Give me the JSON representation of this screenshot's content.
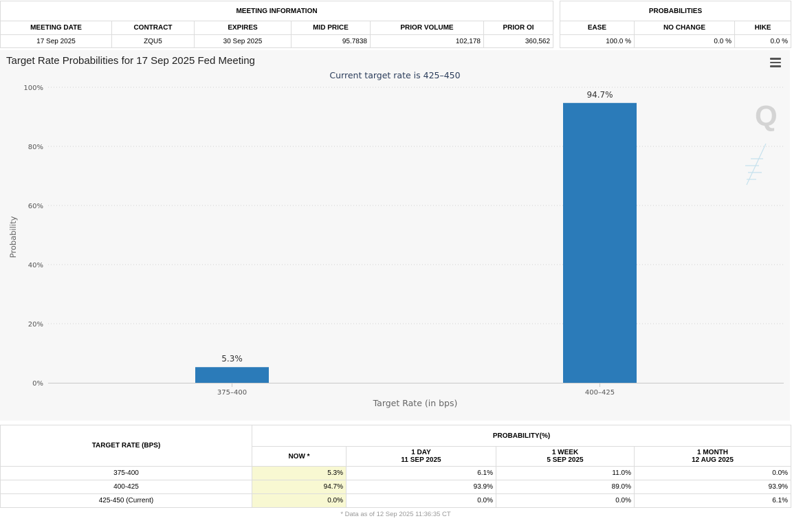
{
  "meeting_info": {
    "group_title": "MEETING INFORMATION",
    "headers": [
      "MEETING DATE",
      "CONTRACT",
      "EXPIRES",
      "MID PRICE",
      "PRIOR VOLUME",
      "PRIOR OI"
    ],
    "values": [
      "17 Sep 2025",
      "ZQU5",
      "30 Sep 2025",
      "95.7838",
      "102,178",
      "360,562"
    ]
  },
  "probabilities": {
    "group_title": "PROBABILITIES",
    "headers": [
      "EASE",
      "NO CHANGE",
      "HIKE"
    ],
    "values": [
      "100.0 %",
      "0.0 %",
      "0.0 %"
    ]
  },
  "chart": {
    "menu_icon": "hamburger-menu-icon",
    "watermark_icon": "quikstrike-q-logo",
    "bar_color": "#2b7bb9"
  },
  "chart_data": {
    "type": "bar",
    "title": "Target Rate Probabilities for 17 Sep 2025 Fed Meeting",
    "subtitle": "Current target rate is 425–450",
    "xlabel": "Target Rate (in bps)",
    "ylabel": "Probability",
    "categories": [
      "375–400",
      "400–425"
    ],
    "values": [
      5.3,
      94.7
    ],
    "data_labels": [
      "5.3%",
      "94.7%"
    ],
    "ylim": [
      0,
      100
    ],
    "yticks": [
      "0%",
      "20%",
      "40%",
      "60%",
      "80%",
      "100%"
    ],
    "ytick_values": [
      0,
      20,
      40,
      60,
      80,
      100
    ],
    "grid": true
  },
  "history": {
    "col_target_rate": "TARGET RATE (BPS)",
    "group_title": "PROBABILITY(%)",
    "now_header": "NOW *",
    "periods": [
      {
        "label": "1 DAY",
        "date": "11 SEP 2025"
      },
      {
        "label": "1 WEEK",
        "date": "5 SEP 2025"
      },
      {
        "label": "1 MONTH",
        "date": "12 AUG 2025"
      }
    ],
    "rows": [
      {
        "rate": "375-400",
        "now": "5.3%",
        "day": "6.1%",
        "week": "11.0%",
        "month": "0.0%"
      },
      {
        "rate": "400-425",
        "now": "94.7%",
        "day": "93.9%",
        "week": "89.0%",
        "month": "93.9%"
      },
      {
        "rate": "425-450 (Current)",
        "now": "0.0%",
        "day": "0.0%",
        "week": "0.0%",
        "month": "6.1%"
      }
    ],
    "footnote": "* Data as of 12 Sep 2025 11:36:35 CT"
  }
}
